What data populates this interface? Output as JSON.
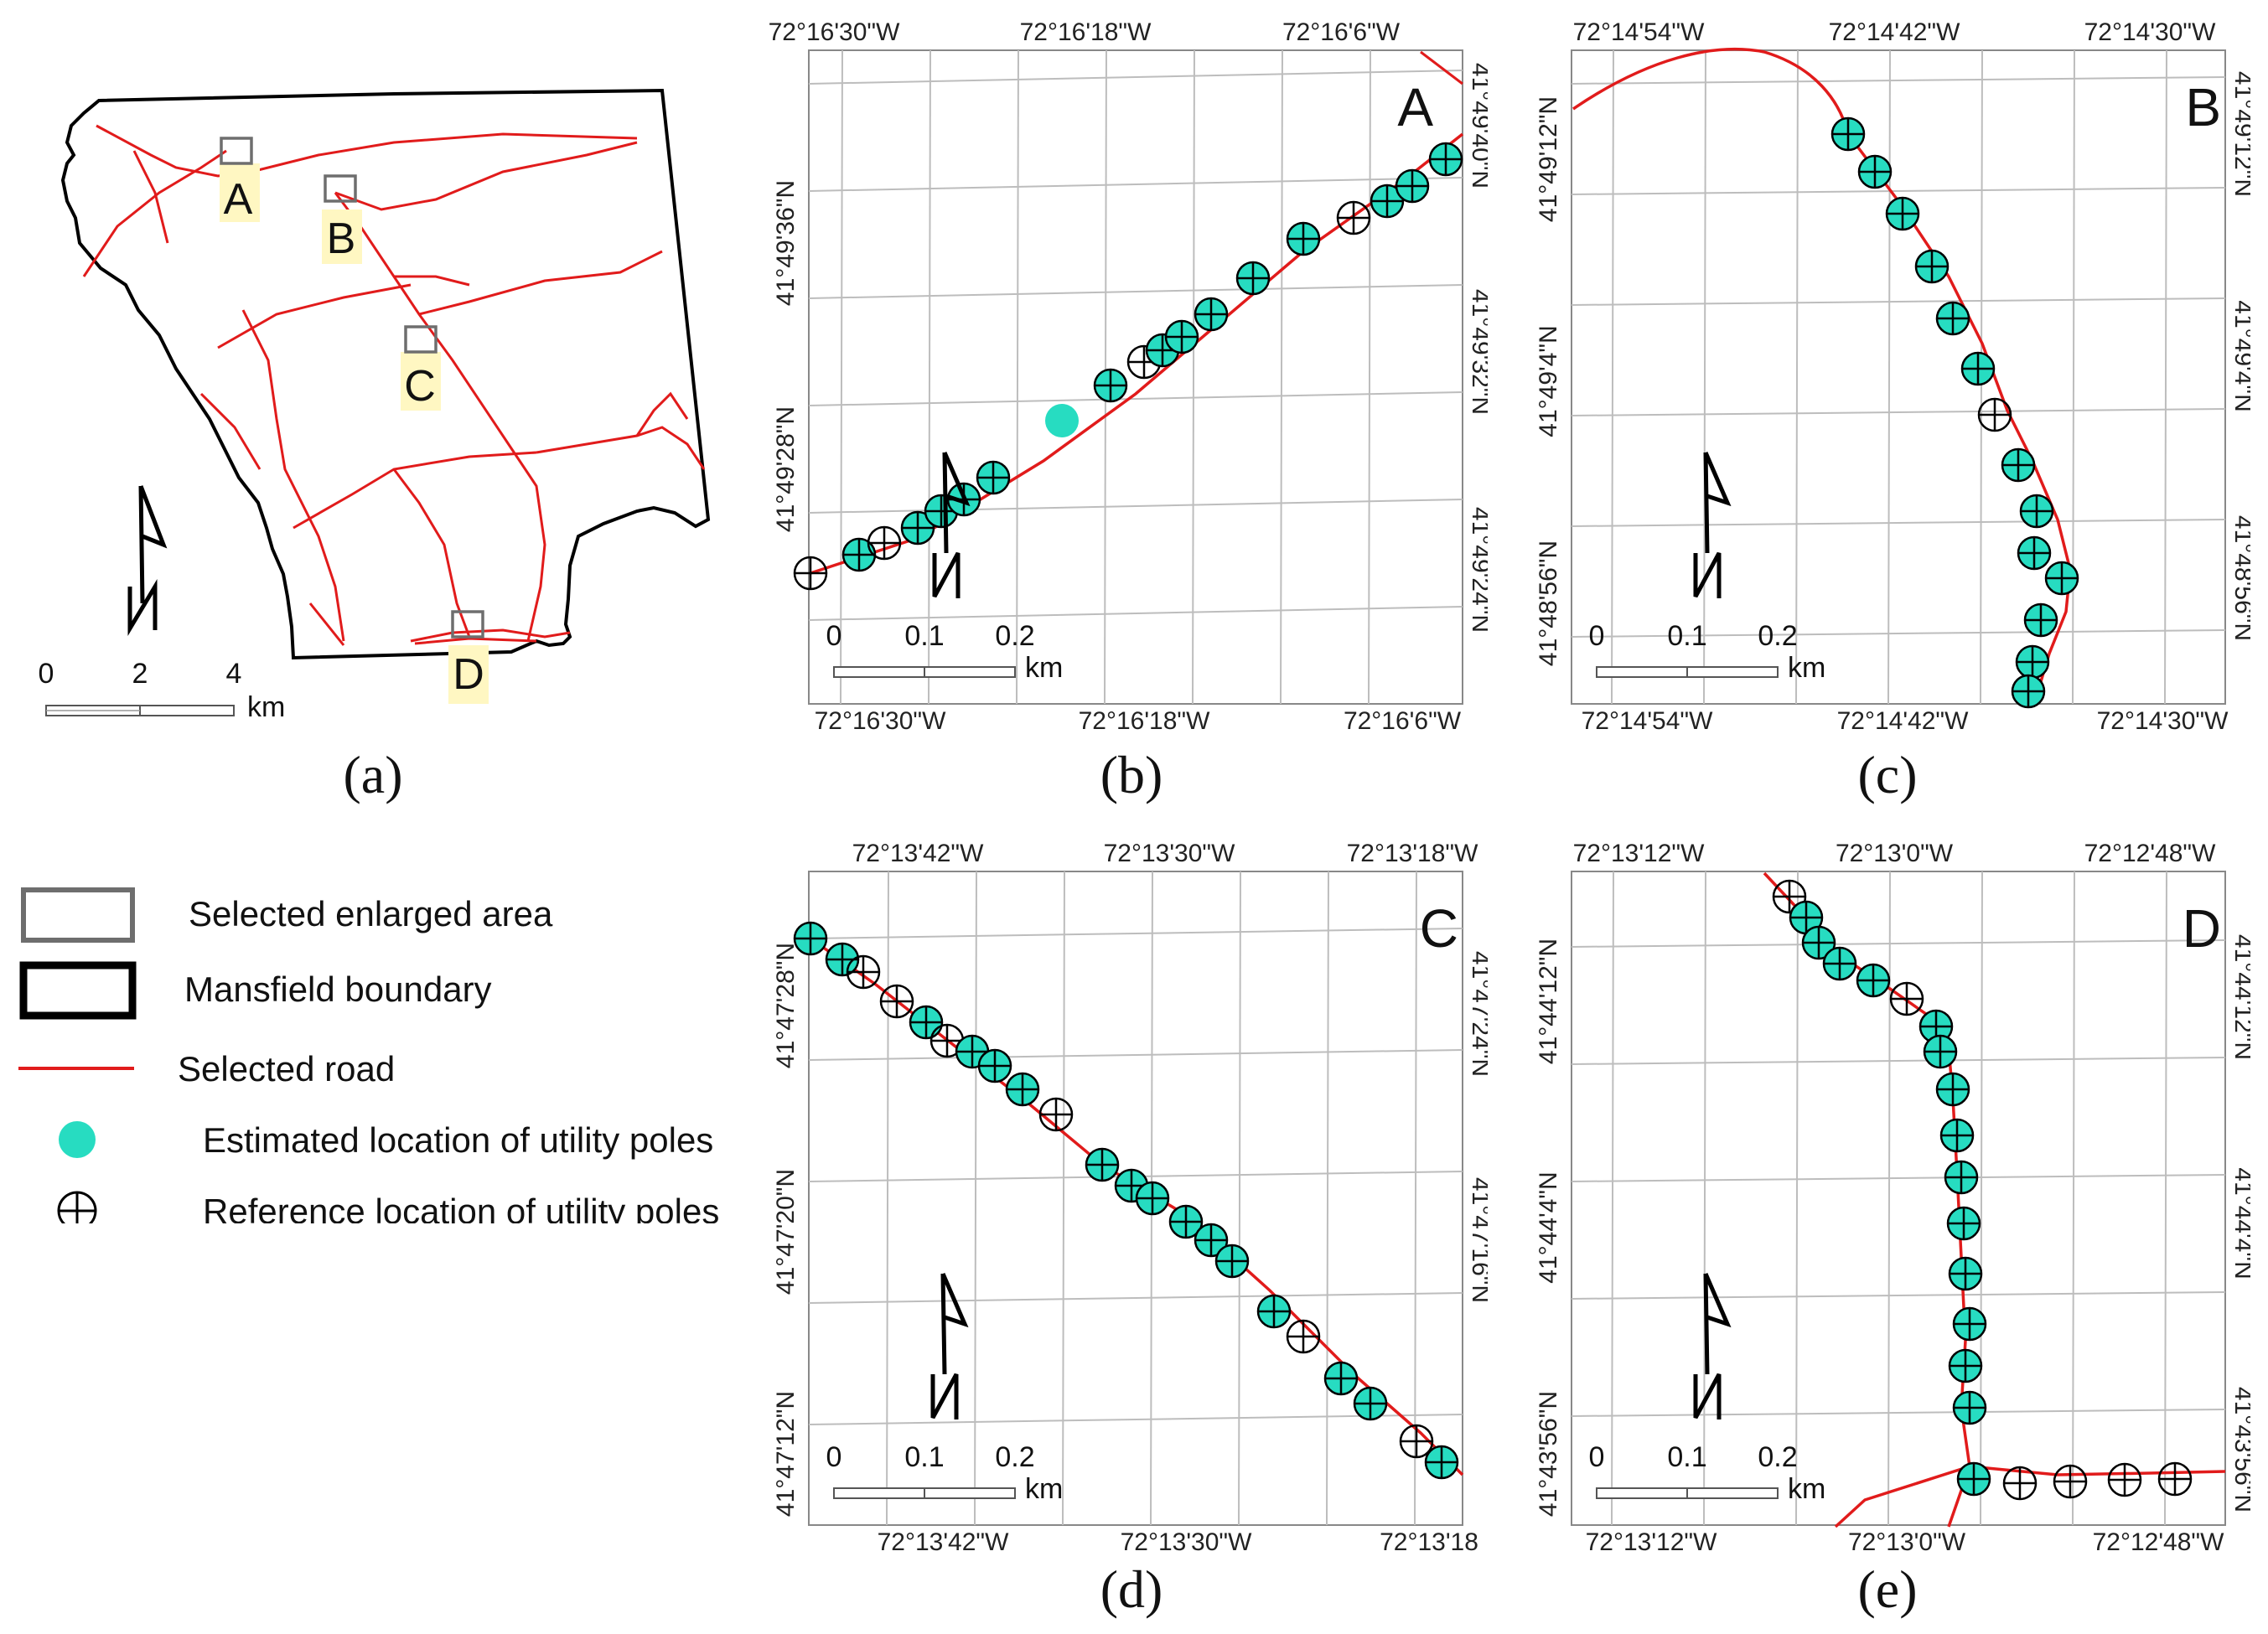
{
  "colors": {
    "road": "#e11b1b",
    "estimated": "#27dcc1",
    "boundary": "#000000",
    "grid": "#bdbdbd",
    "area_box": "#6e6e6e",
    "label_bg": "#fff7c2"
  },
  "captions": [
    "(a)",
    "(b)",
    "(c)",
    "(d)",
    "(e)"
  ],
  "overview": {
    "area_labels": [
      "A",
      "B",
      "C",
      "D"
    ],
    "scale": {
      "ticks": [
        "0",
        "2",
        "4"
      ],
      "unit": "km"
    }
  },
  "panels": {
    "b": {
      "letter": "A",
      "top_ticks": [
        "72°16'30\"W",
        "72°16'18\"W",
        "72°16'6\"W"
      ],
      "bottom_ticks": [
        "72°16'30\"W",
        "72°16'18\"W",
        "72°16'6\"W"
      ],
      "left_ticks": [
        "41°49'36\"N",
        "41°49'28\"N"
      ],
      "right_ticks": [
        "41°49'40\"N",
        "41°49'32\"N",
        "41°49'24\"N"
      ],
      "scale": {
        "ticks": [
          "0",
          "0.1",
          "0.2"
        ],
        "unit": "km"
      }
    },
    "c": {
      "letter": "B",
      "top_ticks": [
        "72°14'54\"W",
        "72°14'42\"W",
        "72°14'30\"W"
      ],
      "bottom_ticks": [
        "72°14'54\"W",
        "72°14'42\"W",
        "72°14'30\"W"
      ],
      "left_ticks": [
        "41°49'12\"N",
        "41°49'4\"N",
        "41°48'56\"N"
      ],
      "right_ticks": [
        "41°49'12\"N",
        "41°49'4\"N",
        "41°48'56\"N"
      ],
      "scale": {
        "ticks": [
          "0",
          "0.1",
          "0.2"
        ],
        "unit": "km"
      }
    },
    "d": {
      "letter": "C",
      "top_ticks": [
        "72°13'42\"W",
        "72°13'30\"W",
        "72°13'18\"W"
      ],
      "bottom_ticks": [
        "72°13'42\"W",
        "72°13'30\"W",
        "72°13'18"
      ],
      "left_ticks": [
        "41°47'28\"N",
        "41°47'20\"N",
        "41°47'12\"N"
      ],
      "right_ticks": [
        "41°47'24\"N",
        "41°47'16\"N"
      ],
      "scale": {
        "ticks": [
          "0",
          "0.1",
          "0.2"
        ],
        "unit": "km"
      }
    },
    "e": {
      "letter": "D",
      "top_ticks": [
        "72°13'12\"W",
        "72°13'0\"W",
        "72°12'48\"W"
      ],
      "bottom_ticks": [
        "72°13'12\"W",
        "72°13'0\"W",
        "72°12'48\"W"
      ],
      "left_ticks": [
        "41°44'12\"N",
        "41°44'4\"N",
        "41°43'56\"N"
      ],
      "right_ticks": [
        "41°44'12\"N",
        "41°44'4\"N",
        "41°43'56\"N"
      ],
      "scale": {
        "ticks": [
          "0",
          "0.1",
          "0.2"
        ],
        "unit": "km"
      }
    }
  },
  "legend": [
    {
      "key": "selected",
      "label": "Selected enlarged area"
    },
    {
      "key": "boundary",
      "label": "Mansfield boundary"
    },
    {
      "key": "road",
      "label": "Selected road"
    },
    {
      "key": "estimated",
      "label": "Estimated location of utility poles"
    },
    {
      "key": "reference",
      "label": "Reference location of utility poles"
    }
  ]
}
